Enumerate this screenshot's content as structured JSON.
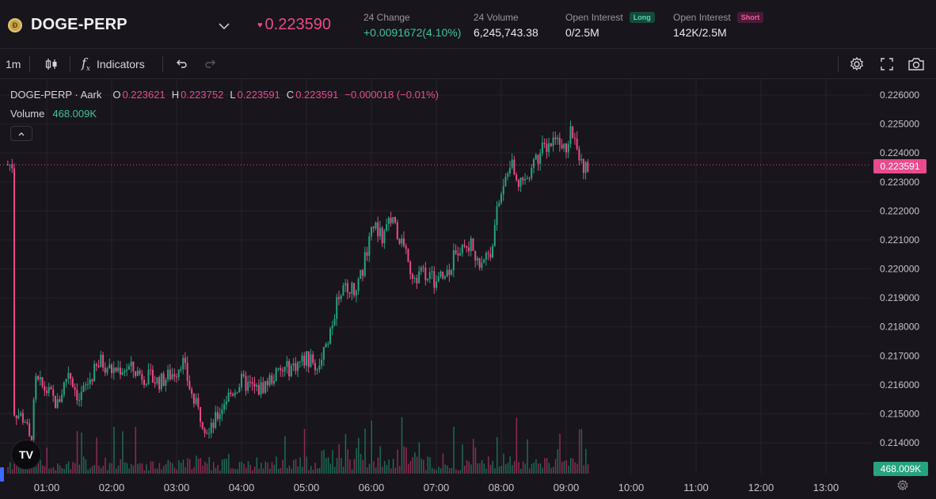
{
  "header": {
    "symbol": "DOGE-PERP",
    "coin_icon": "doge-coin-icon",
    "price": "0.223590",
    "price_direction_icon": "heart-down-icon",
    "change_label": "24 Change",
    "change_value": "+0.0091672(4.10%)",
    "volume_label": "24 Volume",
    "volume_value": "6,245,743.38",
    "oi_long_label": "Open Interest",
    "oi_long_badge": "Long",
    "oi_long_value": "0/2.5M",
    "oi_short_label": "Open Interest",
    "oi_short_badge": "Short",
    "oi_short_value": "142K/2.5M"
  },
  "toolbar": {
    "interval": "1m",
    "indicators_label": "Indicators"
  },
  "legend": {
    "title": "DOGE-PERP · Aark",
    "o_key": "O",
    "o_val": "0.223621",
    "h_key": "H",
    "h_val": "0.223752",
    "l_key": "L",
    "l_val": "0.223591",
    "c_key": "C",
    "c_val": "0.223591",
    "change": "−0.000018 (−0.01%)",
    "volume_label": "Volume",
    "volume_value": "468.009K"
  },
  "current_price_tag": "0.223591",
  "volume_tag": "468.009K",
  "colors": {
    "up": "#26a37f",
    "down": "#e84b8d",
    "bg": "#18151c",
    "grid": "#26222b"
  },
  "chart_data": {
    "type": "candlestick",
    "x_ticks": [
      "01:00",
      "02:00",
      "03:00",
      "04:00",
      "05:00",
      "06:00",
      "07:00",
      "08:00",
      "09:00",
      "10:00",
      "11:00",
      "12:00",
      "13:00"
    ],
    "y_ticks": [
      "0.226000",
      "0.225000",
      "0.224000",
      "0.223000",
      "0.222000",
      "0.221000",
      "0.220000",
      "0.219000",
      "0.218000",
      "0.217000",
      "0.216000",
      "0.215000",
      "0.214000"
    ],
    "ylim": [
      0.2133,
      0.2265
    ],
    "current_price": 0.223591,
    "price_path": [
      [
        "00:30",
        0.2151
      ],
      [
        "00:40",
        0.2148
      ],
      [
        "00:45",
        0.2139
      ],
      [
        "00:50",
        0.2161
      ],
      [
        "01:00",
        0.2158
      ],
      [
        "01:10",
        0.2153
      ],
      [
        "01:20",
        0.2165
      ],
      [
        "01:30",
        0.2155
      ],
      [
        "01:40",
        0.2162
      ],
      [
        "01:50",
        0.2168
      ],
      [
        "02:00",
        0.2165
      ],
      [
        "02:15",
        0.2166
      ],
      [
        "02:30",
        0.2163
      ],
      [
        "02:45",
        0.2161
      ],
      [
        "03:00",
        0.2165
      ],
      [
        "03:05",
        0.2169
      ],
      [
        "03:15",
        0.2155
      ],
      [
        "03:30",
        0.2143
      ],
      [
        "03:45",
        0.2155
      ],
      [
        "04:00",
        0.2161
      ],
      [
        "04:15",
        0.2158
      ],
      [
        "04:30",
        0.2163
      ],
      [
        "04:45",
        0.2166
      ],
      [
        "05:00",
        0.2169
      ],
      [
        "05:10",
        0.2166
      ],
      [
        "05:20",
        0.2176
      ],
      [
        "05:30",
        0.2192
      ],
      [
        "05:40",
        0.2194
      ],
      [
        "05:45",
        0.219
      ],
      [
        "05:55",
        0.2205
      ],
      [
        "06:00",
        0.2215
      ],
      [
        "06:10",
        0.2211
      ],
      [
        "06:20",
        0.2218
      ],
      [
        "06:30",
        0.2206
      ],
      [
        "06:40",
        0.2197
      ],
      [
        "06:50",
        0.2199
      ],
      [
        "07:00",
        0.2195
      ],
      [
        "07:10",
        0.2199
      ],
      [
        "07:20",
        0.2207
      ],
      [
        "07:30",
        0.2209
      ],
      [
        "07:40",
        0.2203
      ],
      [
        "07:50",
        0.2206
      ],
      [
        "08:00",
        0.2228
      ],
      [
        "08:10",
        0.2236
      ],
      [
        "08:20",
        0.2228
      ],
      [
        "08:30",
        0.2237
      ],
      [
        "08:40",
        0.2242
      ],
      [
        "08:50",
        0.2245
      ],
      [
        "09:00",
        0.2242
      ],
      [
        "09:05",
        0.2249
      ],
      [
        "09:10",
        0.2242
      ],
      [
        "09:15",
        0.2234
      ],
      [
        "09:20",
        0.2236
      ]
    ]
  }
}
